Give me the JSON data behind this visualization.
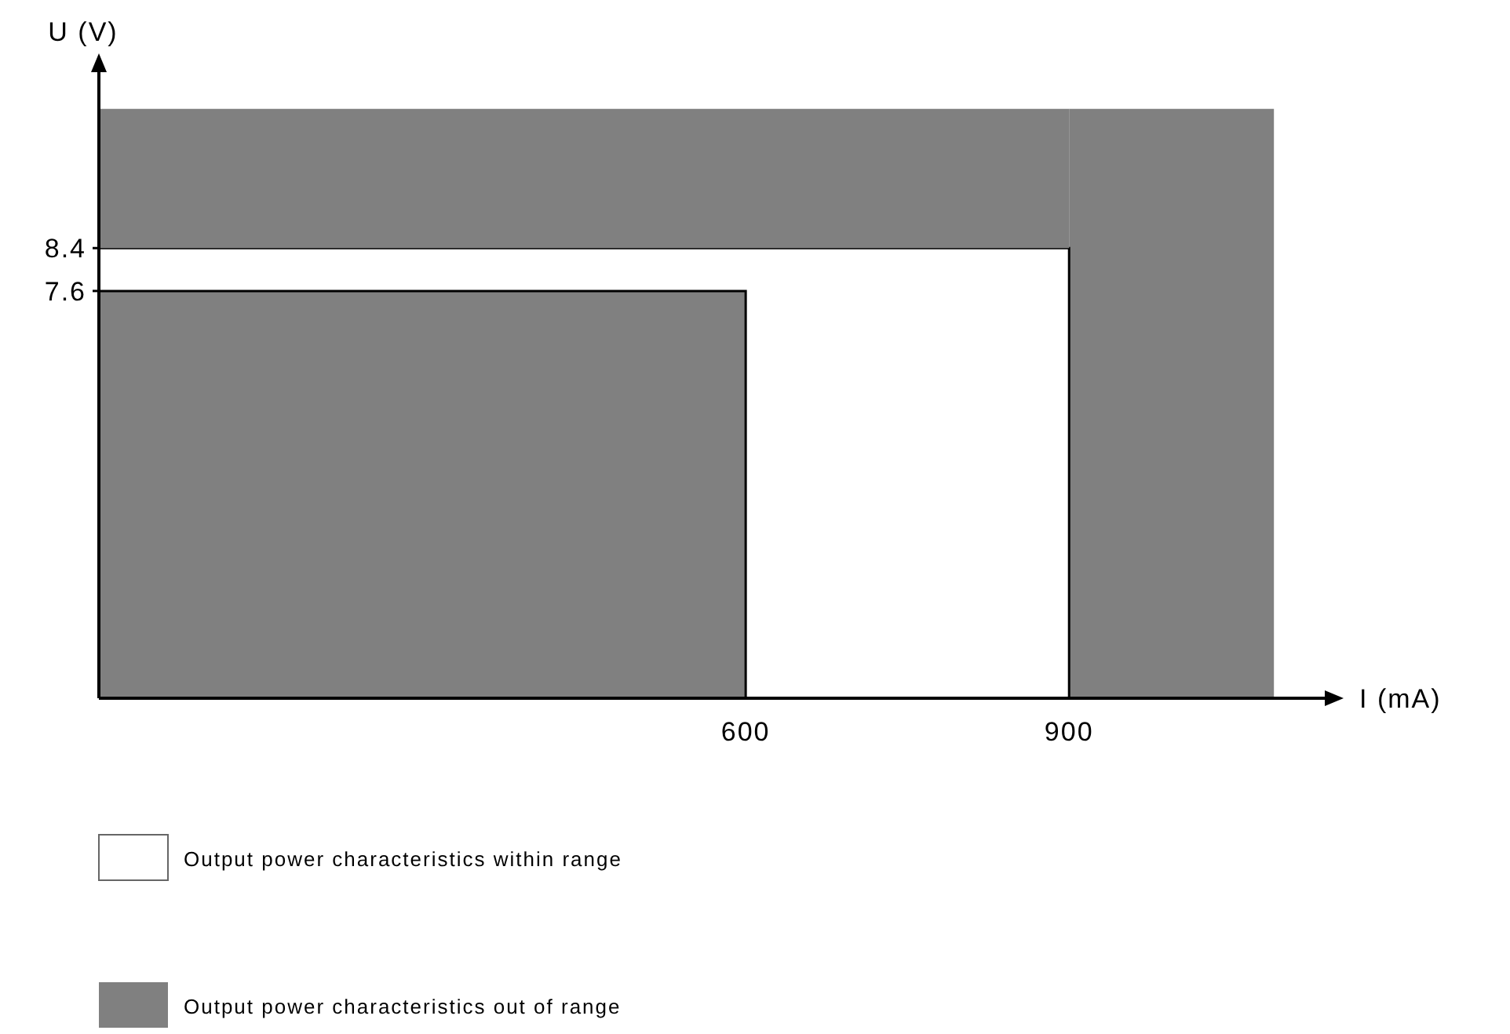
{
  "chart_data": {
    "type": "area",
    "stacked": true,
    "xlabel": "I (mA)",
    "ylabel": "U (V)",
    "xlim": [
      0,
      1143
    ],
    "ylim": [
      0,
      11.8
    ],
    "xticks": [
      600,
      900
    ],
    "yticks": [
      7.6,
      8.4
    ],
    "legend": "bottom",
    "x": [
      0,
      600,
      600,
      900,
      900,
      1090
    ],
    "series": [
      {
        "name": "Output power characteristics out of range",
        "color": "#808080",
        "values": [
          7.6,
          7.6,
          null,
          null,
          11,
          11
        ]
      },
      {
        "name": "Output power characteristics within range",
        "color": "#ffffff",
        "values": [
          0.8,
          0.8,
          8.4,
          8.4,
          null,
          null
        ]
      },
      {
        "color": "#808080",
        "values": [
          2.6,
          2.6,
          2.6,
          2.6,
          null,
          null
        ]
      }
    ]
  }
}
